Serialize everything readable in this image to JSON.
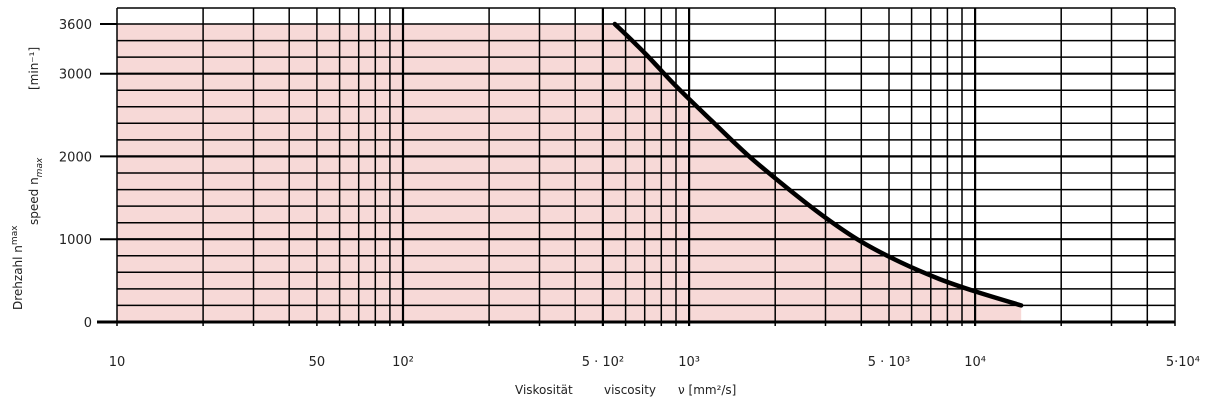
{
  "chart_data": {
    "type": "line",
    "title": "",
    "xlabel": {
      "de": "Viskosität",
      "en": "viscosity",
      "symbol": "ν [mm²/s]"
    },
    "ylabel": {
      "de": "Drehzahl n",
      "de_sub": "max",
      "en": "speed n",
      "en_sub": "max",
      "unit": "[min⁻¹]"
    },
    "x_scale": "log",
    "xlim": [
      10,
      50000
    ],
    "ylim": [
      0,
      3600
    ],
    "x_ticks": [
      {
        "value": 10,
        "label": "10"
      },
      {
        "value": 50,
        "label": "50"
      },
      {
        "value": 100,
        "label": "10²"
      },
      {
        "value": 500,
        "label": "5 · 10²"
      },
      {
        "value": 1000,
        "label": "10³"
      },
      {
        "value": 5000,
        "label": "5 · 10³"
      },
      {
        "value": 10000,
        "label": "10⁴"
      },
      {
        "value": 50000,
        "label": "5·10⁴"
      }
    ],
    "y_ticks": [
      {
        "value": 0,
        "label": "0"
      },
      {
        "value": 1000,
        "label": "1000"
      },
      {
        "value": 2000,
        "label": "2000"
      },
      {
        "value": 3000,
        "label": "3000"
      },
      {
        "value": 3600,
        "label": "3600"
      }
    ],
    "grid": true,
    "y_grid_step": 200,
    "x_grid_values": [
      20,
      30,
      40,
      50,
      60,
      70,
      80,
      90,
      100,
      200,
      300,
      400,
      500,
      600,
      700,
      800,
      900,
      1000,
      2000,
      3000,
      4000,
      5000,
      6000,
      7000,
      8000,
      9000,
      10000,
      20000,
      30000,
      40000,
      50000
    ],
    "series": [
      {
        "x": [
          550,
          700,
          900,
          1200,
          1600,
          2200,
          3000,
          4000,
          5500,
          7500,
          10000,
          14500
        ],
        "y": [
          3600,
          3250,
          2850,
          2430,
          2020,
          1620,
          1260,
          970,
          720,
          520,
          370,
          200
        ]
      }
    ],
    "shaded_region": "area under curve, x from 10 to 14500",
    "colors": {
      "shade": "#f7d9d7",
      "grid": "#000000",
      "curve": "#000000"
    }
  }
}
